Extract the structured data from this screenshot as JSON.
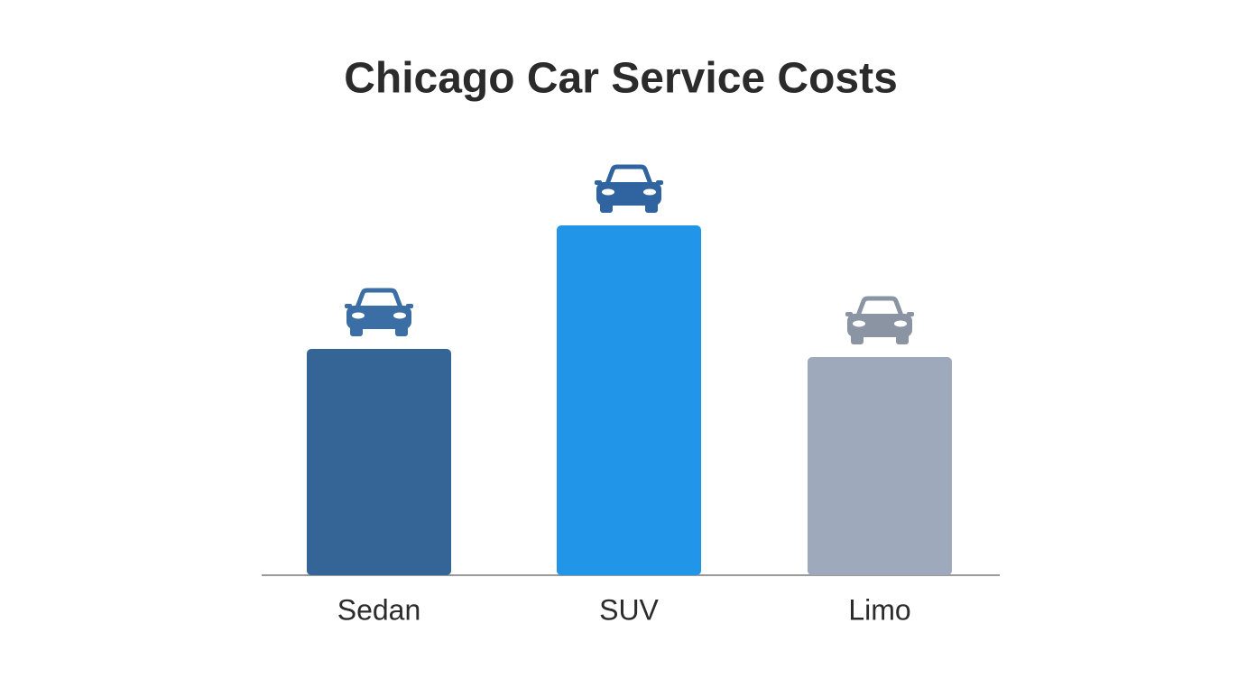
{
  "chart_data": {
    "type": "bar",
    "title": "Chicago Car Service Costs",
    "categories": [
      "Sedan",
      "SUV",
      "Limo"
    ],
    "values": [
      251,
      388,
      242
    ],
    "colors": [
      "#356597",
      "#2196e8",
      "#9eaabb"
    ],
    "icon_colors": [
      "#3a6ea5",
      "#2f64a0",
      "#8a94a3"
    ]
  }
}
